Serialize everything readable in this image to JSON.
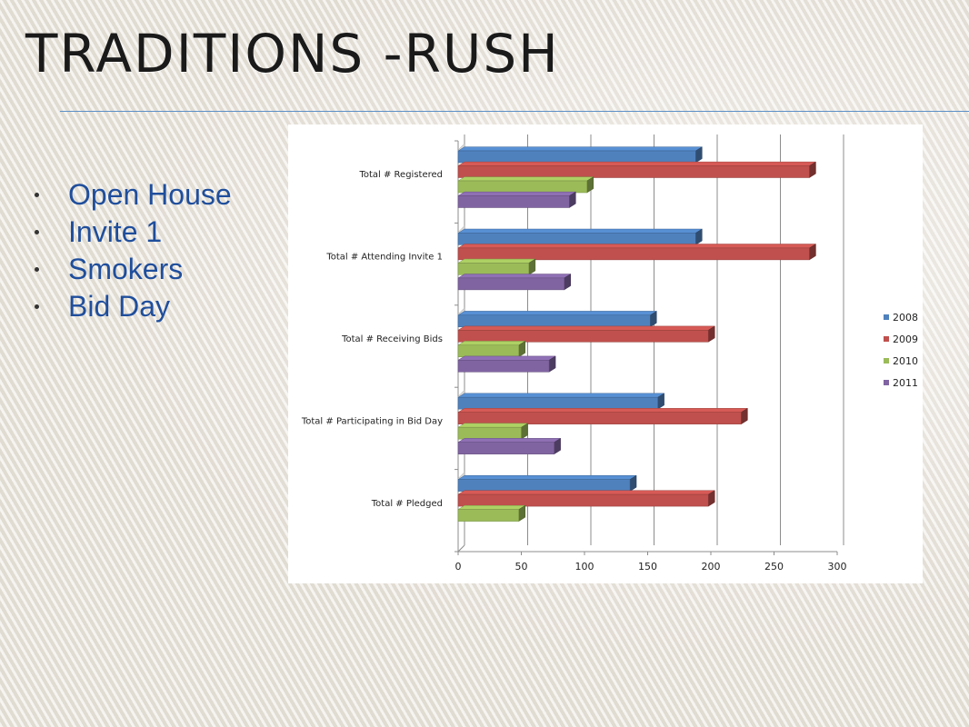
{
  "slide": {
    "title": "TRADITIONS -RUSH",
    "bullets": [
      "Open House",
      "Invite 1",
      "Smokers",
      "Bid Day"
    ]
  },
  "colors": {
    "title": "#1a1a1a",
    "bullet_text": "#1f4e9c",
    "rule": "#5b8fc7"
  },
  "chart_data": {
    "type": "bar",
    "orientation": "horizontal",
    "style": "3d-clustered",
    "categories": [
      "Total # Registered",
      "Total # Attending Invite 1",
      "Total # Receiving Bids",
      "Total # Participating in Bid Day",
      "Total # Pledged"
    ],
    "series": [
      {
        "name": "2008",
        "color": "#4f81bd",
        "values": [
          188,
          188,
          152,
          158,
          136
        ]
      },
      {
        "name": "2009",
        "color": "#c0504d",
        "values": [
          278,
          278,
          198,
          224,
          198
        ]
      },
      {
        "name": "2010",
        "color": "#9bbb59",
        "values": [
          102,
          56,
          48,
          50,
          48
        ]
      },
      {
        "name": "2011",
        "color": "#8064a2",
        "values": [
          88,
          84,
          72,
          76,
          null
        ]
      }
    ],
    "xlim": [
      0,
      300
    ],
    "xticks": [
      0,
      50,
      100,
      150,
      200,
      250,
      300
    ],
    "grid": true,
    "legend": "right",
    "title": "",
    "xlabel": "",
    "ylabel": ""
  }
}
